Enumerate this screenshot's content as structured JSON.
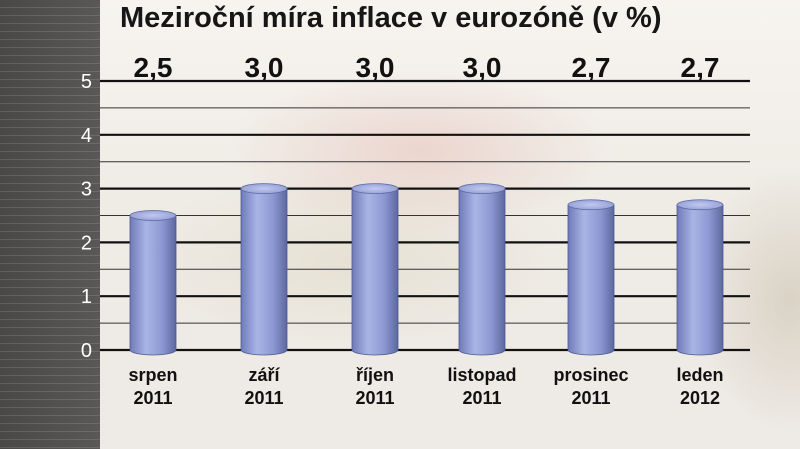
{
  "chart_data": {
    "type": "bar",
    "title": "Meziroční míra inflace v eurozóně (v %)",
    "categories": [
      [
        "srpen",
        "2011"
      ],
      [
        "září",
        "2011"
      ],
      [
        "říjen",
        "2011"
      ],
      [
        "listopad",
        "2011"
      ],
      [
        "prosinec",
        "2011"
      ],
      [
        "leden",
        "2012"
      ]
    ],
    "values": [
      2.5,
      3.0,
      3.0,
      3.0,
      2.7,
      2.7
    ],
    "data_labels": [
      "2,5",
      "3,0",
      "3,0",
      "3,0",
      "2,7",
      "2,7"
    ],
    "yticks": [
      "0",
      "1",
      "2",
      "3",
      "4",
      "5"
    ],
    "ylim": [
      0,
      5
    ],
    "grid": true,
    "bar_color": "#8f9bd4",
    "xlabel": "",
    "ylabel": ""
  }
}
